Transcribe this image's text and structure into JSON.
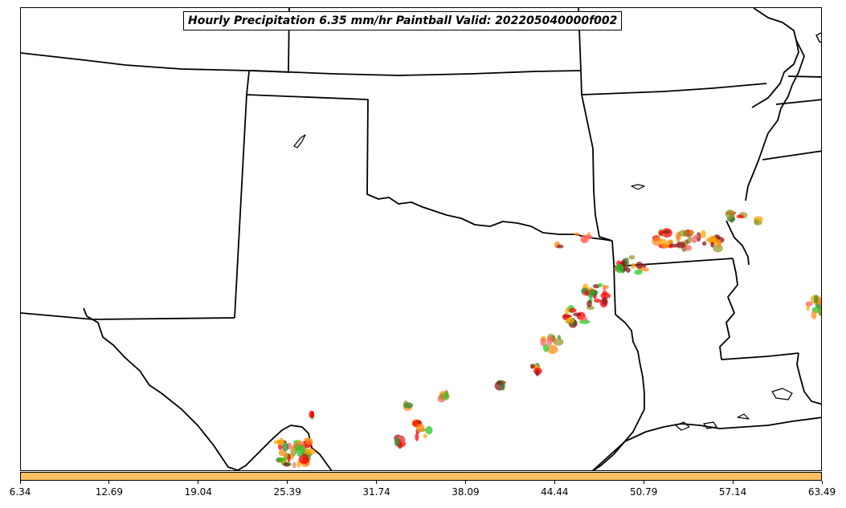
{
  "title": "Hourly Precipitation 6.35 mm/hr Paintball Valid: 202205040000f002",
  "colorbar": {
    "color": "#FFC062",
    "tick_labels": [
      "6.34",
      "12.69",
      "19.04",
      "25.39",
      "31.74",
      "38.09",
      "44.44",
      "50.79",
      "57.14",
      "63.49"
    ]
  },
  "paintball_colors": [
    "#ff0000",
    "#ff8c1a",
    "#22cc22",
    "#8b1a1a",
    "#2e8b2e",
    "#9a9a2a",
    "#ffa500",
    "#ff6666"
  ]
}
